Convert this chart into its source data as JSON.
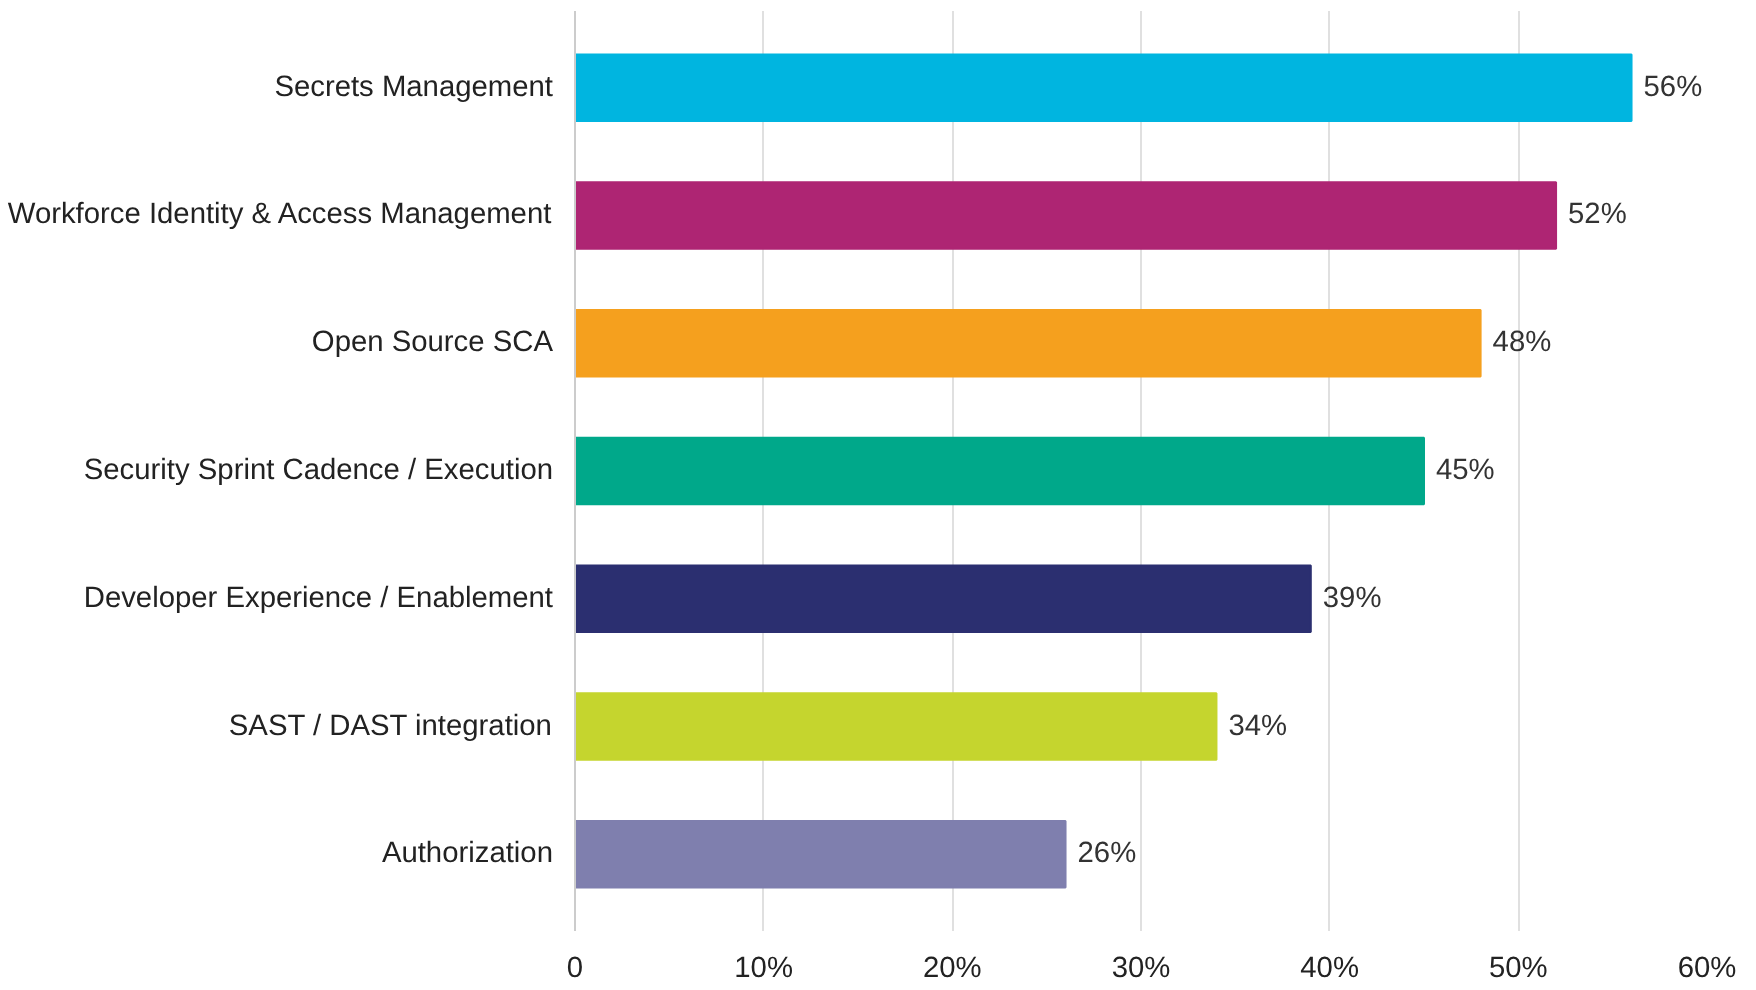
{
  "chart_data": {
    "type": "bar",
    "orientation": "horizontal",
    "categories": [
      "Secrets Management",
      "Workforce Identity & Access Management",
      "Open Source SCA",
      "Security Sprint Cadence / Execution",
      "Developer Experience / Enablement",
      "SAST / DAST integration",
      "Authorization"
    ],
    "values": [
      56,
      52,
      48,
      45,
      39,
      34,
      26
    ],
    "colors": [
      "#00b5e0",
      "#ae2573",
      "#f5a01e",
      "#00a88a",
      "#2b2f70",
      "#c5d52e",
      "#7f7fae"
    ],
    "value_labels": [
      "56%",
      "52%",
      "48%",
      "45%",
      "39%",
      "34%",
      "26%"
    ],
    "xlim": [
      0,
      60
    ],
    "xticks": [
      {
        "value": 0,
        "label": "0"
      },
      {
        "value": 10,
        "label": "10%"
      },
      {
        "value": 20,
        "label": "20%"
      },
      {
        "value": 30,
        "label": "30%"
      },
      {
        "value": 40,
        "label": "40%"
      },
      {
        "value": 50,
        "label": "50%"
      },
      {
        "value": 60,
        "label": "60%"
      }
    ],
    "grid": "x"
  }
}
